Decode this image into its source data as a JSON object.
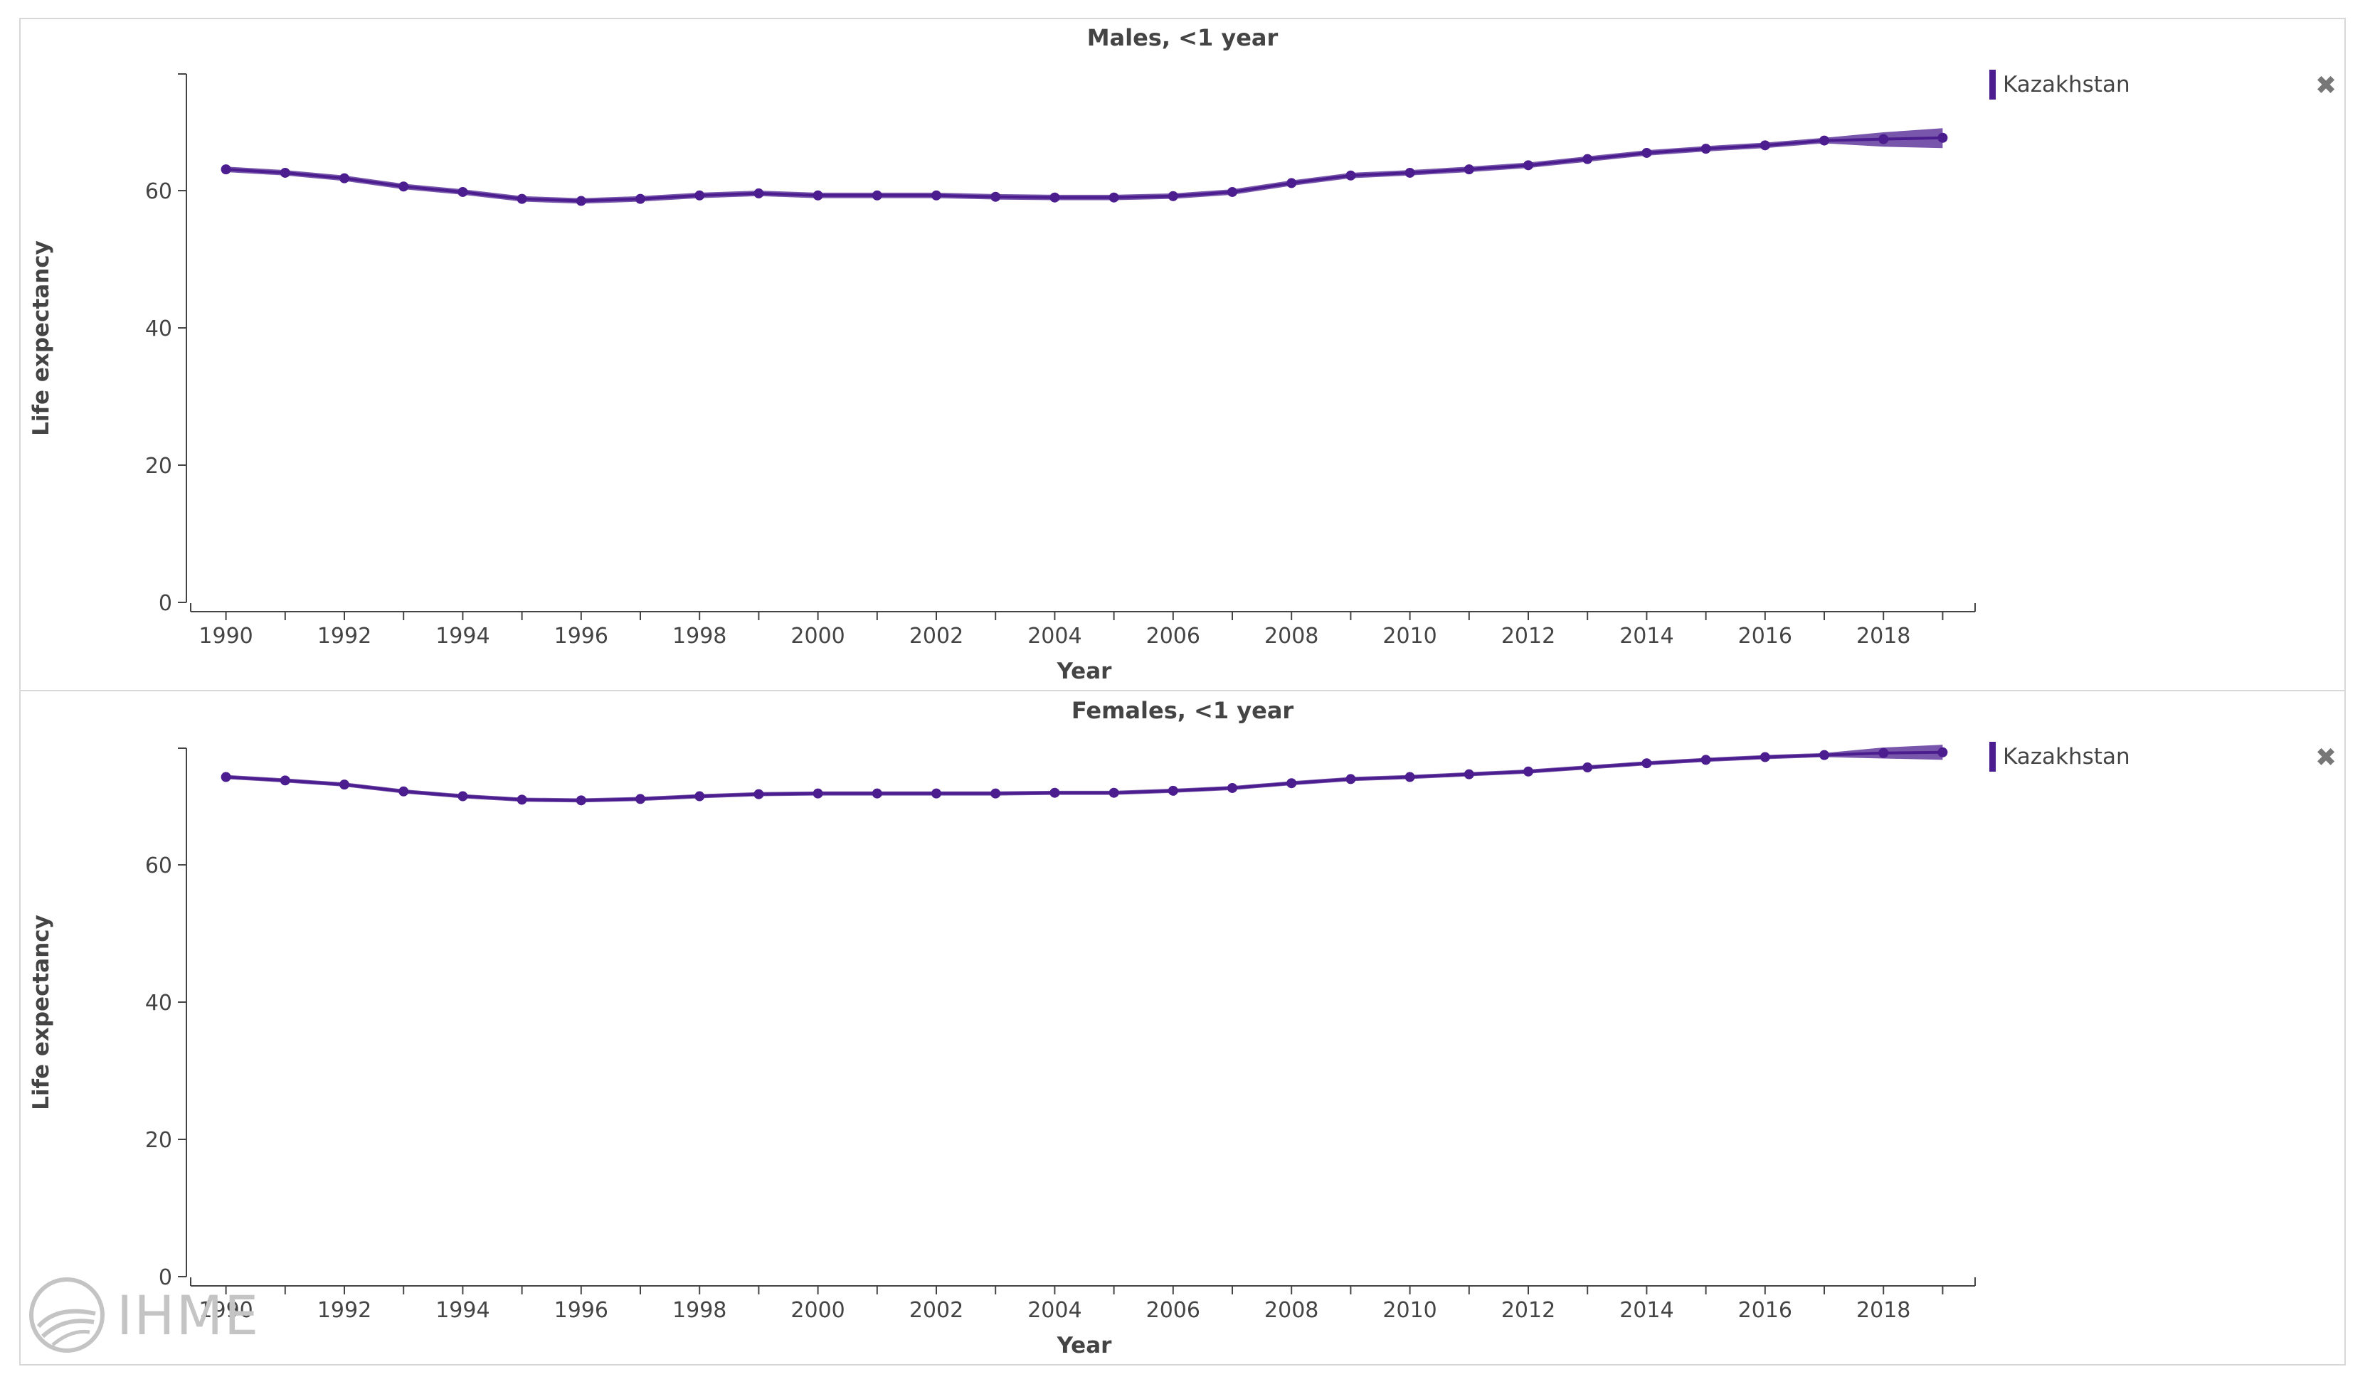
{
  "panels": [
    {
      "title": "Males, <1 year",
      "legend": {
        "label": "Kazakhstan",
        "color": "#4b1d8f"
      },
      "close_icon": "close-icon",
      "chart_data": {
        "type": "line",
        "title": "Males, <1 year",
        "xlabel": "Year",
        "ylabel": "Life expectancy",
        "ylim": [
          0,
          77
        ],
        "yticks": [
          0,
          20,
          40,
          60
        ],
        "xlim": [
          1989.5,
          2019.5
        ],
        "xticks": [
          1990,
          1992,
          1994,
          1996,
          1998,
          2000,
          2002,
          2004,
          2006,
          2008,
          2010,
          2012,
          2014,
          2016,
          2018
        ],
        "series": [
          {
            "name": "Kazakhstan",
            "color": "#4b1d8f",
            "x": [
              1990,
              1991,
              1992,
              1993,
              1994,
              1995,
              1996,
              1997,
              1998,
              1999,
              2000,
              2001,
              2002,
              2003,
              2004,
              2005,
              2006,
              2007,
              2008,
              2009,
              2010,
              2011,
              2012,
              2013,
              2014,
              2015,
              2016,
              2017,
              2018,
              2019
            ],
            "y": [
              63.1,
              62.6,
              61.8,
              60.6,
              59.8,
              58.8,
              58.5,
              58.8,
              59.3,
              59.6,
              59.3,
              59.3,
              59.3,
              59.1,
              59.0,
              59.0,
              59.2,
              59.8,
              61.1,
              62.2,
              62.6,
              63.1,
              63.7,
              64.6,
              65.5,
              66.1,
              66.6,
              67.3,
              67.5,
              67.7
            ],
            "lower": [
              62.7,
              62.2,
              61.4,
              60.2,
              59.4,
              58.4,
              58.1,
              58.4,
              58.9,
              59.2,
              58.9,
              58.9,
              58.9,
              58.7,
              58.6,
              58.6,
              58.8,
              59.4,
              60.7,
              61.8,
              62.2,
              62.7,
              63.3,
              64.2,
              65.1,
              65.7,
              66.2,
              66.9,
              66.4,
              66.2
            ],
            "upper": [
              63.5,
              63.0,
              62.2,
              61.0,
              60.2,
              59.2,
              58.9,
              59.2,
              59.7,
              60.0,
              59.7,
              59.7,
              59.7,
              59.5,
              59.4,
              59.4,
              59.6,
              60.2,
              61.5,
              62.6,
              63.0,
              63.5,
              64.1,
              65.0,
              65.9,
              66.5,
              67.0,
              67.7,
              68.5,
              69.1
            ]
          }
        ],
        "grid": false
      }
    },
    {
      "title": "Females, <1 year",
      "legend": {
        "label": "Kazakhstan",
        "color": "#4b1d8f"
      },
      "close_icon": "close-icon",
      "chart_data": {
        "type": "line",
        "title": "Females, <1 year",
        "xlabel": "Year",
        "ylabel": "Life expectancy",
        "ylim": [
          0,
          77
        ],
        "yticks": [
          0,
          20,
          40,
          60
        ],
        "xlim": [
          1989.5,
          2019.5
        ],
        "xticks": [
          1990,
          1992,
          1994,
          1996,
          1998,
          2000,
          2002,
          2004,
          2006,
          2008,
          2010,
          2012,
          2014,
          2016,
          2018
        ],
        "series": [
          {
            "name": "Kazakhstan",
            "color": "#4b1d8f",
            "x": [
              1990,
              1991,
              1992,
              1993,
              1994,
              1995,
              1996,
              1997,
              1998,
              1999,
              2000,
              2001,
              2002,
              2003,
              2004,
              2005,
              2006,
              2007,
              2008,
              2009,
              2010,
              2011,
              2012,
              2013,
              2014,
              2015,
              2016,
              2017,
              2018,
              2019
            ],
            "y": [
              72.8,
              72.3,
              71.7,
              70.7,
              70.0,
              69.5,
              69.4,
              69.6,
              70.0,
              70.3,
              70.4,
              70.4,
              70.4,
              70.4,
              70.5,
              70.5,
              70.8,
              71.2,
              71.9,
              72.5,
              72.8,
              73.2,
              73.6,
              74.2,
              74.8,
              75.3,
              75.7,
              76.0,
              76.3,
              76.4
            ],
            "lower": [
              72.5,
              72.0,
              71.4,
              70.4,
              69.7,
              69.2,
              69.1,
              69.3,
              69.7,
              70.0,
              70.1,
              70.1,
              70.1,
              70.1,
              70.2,
              70.2,
              70.5,
              70.9,
              71.6,
              72.2,
              72.5,
              72.9,
              73.3,
              73.9,
              74.5,
              75.0,
              75.4,
              75.7,
              75.5,
              75.3
            ],
            "upper": [
              73.1,
              72.6,
              72.0,
              71.0,
              70.3,
              69.8,
              69.7,
              69.9,
              70.3,
              70.6,
              70.7,
              70.7,
              70.7,
              70.7,
              70.8,
              70.8,
              71.1,
              71.5,
              72.2,
              72.8,
              73.1,
              73.5,
              73.9,
              74.5,
              75.1,
              75.6,
              76.0,
              76.3,
              77.1,
              77.5
            ]
          }
        ],
        "grid": false
      }
    }
  ],
  "logo": {
    "text": "IHME",
    "icon": "ihme-logo-icon"
  }
}
